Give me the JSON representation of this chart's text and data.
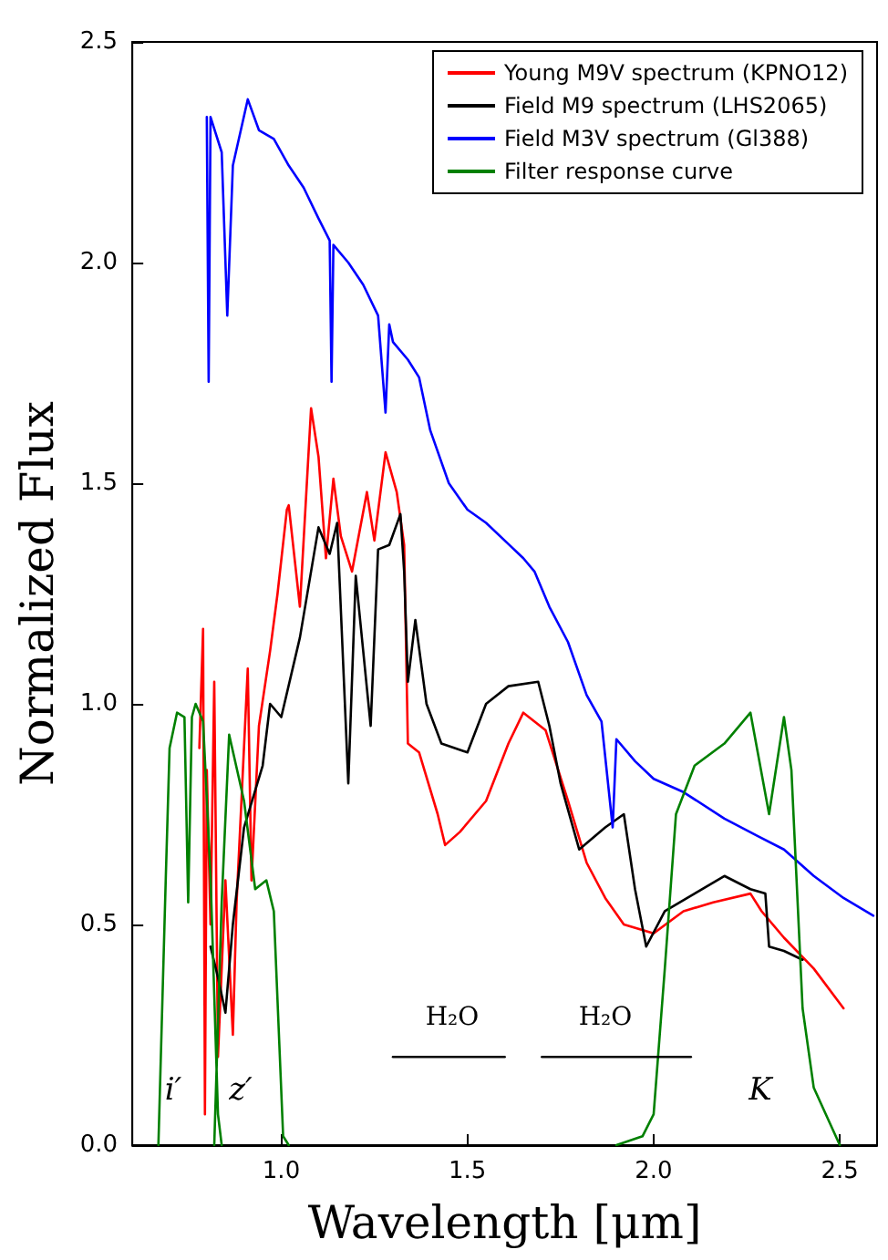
{
  "chart_data": {
    "type": "line",
    "xlabel": "Wavelength [μm]",
    "ylabel": "Normalized Flux",
    "xlim": [
      0.6,
      2.6
    ],
    "ylim": [
      0,
      2.5
    ],
    "xticks": [
      {
        "value": 1,
        "label": "1.0"
      },
      {
        "value": 1.5,
        "label": "1.5"
      },
      {
        "value": 2,
        "label": "2.0"
      },
      {
        "value": 2.5,
        "label": "2.5"
      }
    ],
    "yticks": [
      {
        "value": 0,
        "label": "0.0"
      },
      {
        "value": 0.5,
        "label": "0.5"
      },
      {
        "value": 1,
        "label": "1.0"
      },
      {
        "value": 1.5,
        "label": "1.5"
      },
      {
        "value": 2,
        "label": "2.0"
      },
      {
        "value": 2.5,
        "label": "2.5"
      }
    ],
    "grid": false,
    "legend": "top right",
    "marker": "none",
    "line_style": "solid",
    "series": [
      {
        "name": "Young M9V spectrum (KPNO12)",
        "color": "#ff0000",
        "x": [
          0.78,
          0.79,
          0.795,
          0.8,
          0.81,
          0.82,
          0.83,
          0.85,
          0.87,
          0.88,
          0.91,
          0.92,
          0.94,
          0.97,
          0.99,
          1.015,
          1.02,
          1.05,
          1.08,
          1.1,
          1.12,
          1.14,
          1.16,
          1.19,
          1.23,
          1.25,
          1.28,
          1.31,
          1.33,
          1.34,
          1.37,
          1.42,
          1.44,
          1.48,
          1.55,
          1.61,
          1.65,
          1.71,
          1.77,
          1.82,
          1.87,
          1.92,
          2.0,
          2.08,
          2.16,
          2.26,
          2.29,
          2.35,
          2.43,
          2.51
        ],
        "values": [
          0.9,
          1.17,
          0.07,
          0.85,
          0.5,
          1.05,
          0.2,
          0.6,
          0.25,
          0.55,
          1.08,
          0.6,
          0.95,
          1.12,
          1.25,
          1.44,
          1.45,
          1.22,
          1.67,
          1.56,
          1.33,
          1.51,
          1.38,
          1.3,
          1.48,
          1.37,
          1.57,
          1.48,
          1.36,
          0.91,
          0.89,
          0.75,
          0.68,
          0.71,
          0.78,
          0.91,
          0.98,
          0.94,
          0.78,
          0.64,
          0.56,
          0.5,
          0.48,
          0.53,
          0.55,
          0.57,
          0.53,
          0.47,
          0.4,
          0.31
        ]
      },
      {
        "name": "Field M9 spectrum (LHS2065)",
        "color": "#000000",
        "x": [
          0.81,
          0.83,
          0.85,
          0.87,
          0.9,
          0.95,
          0.97,
          1.0,
          1.05,
          1.1,
          1.13,
          1.15,
          1.18,
          1.2,
          1.24,
          1.26,
          1.29,
          1.32,
          1.33,
          1.34,
          1.36,
          1.39,
          1.43,
          1.5,
          1.55,
          1.61,
          1.69,
          1.72,
          1.75,
          1.8,
          1.87,
          1.92,
          1.95,
          1.98,
          2.03,
          2.11,
          2.19,
          2.26,
          2.3,
          2.31,
          2.35,
          2.4
        ],
        "values": [
          0.45,
          0.38,
          0.3,
          0.5,
          0.72,
          0.86,
          1.0,
          0.97,
          1.15,
          1.4,
          1.34,
          1.41,
          0.82,
          1.29,
          0.95,
          1.35,
          1.36,
          1.43,
          1.3,
          1.05,
          1.19,
          1.0,
          0.91,
          0.89,
          1.0,
          1.04,
          1.05,
          0.95,
          0.82,
          0.67,
          0.72,
          0.75,
          0.58,
          0.45,
          0.53,
          0.57,
          0.61,
          0.58,
          0.57,
          0.45,
          0.44,
          0.42
        ]
      },
      {
        "name": "Field M3V spectrum (Gl388)",
        "color": "#0000ff",
        "x": [
          0.8,
          0.805,
          0.81,
          0.84,
          0.855,
          0.87,
          0.91,
          0.94,
          0.98,
          1.02,
          1.06,
          1.1,
          1.13,
          1.135,
          1.14,
          1.18,
          1.22,
          1.26,
          1.28,
          1.29,
          1.3,
          1.34,
          1.37,
          1.4,
          1.45,
          1.5,
          1.55,
          1.6,
          1.65,
          1.68,
          1.72,
          1.77,
          1.82,
          1.86,
          1.89,
          1.9,
          1.95,
          2.0,
          2.08,
          2.19,
          2.28,
          2.35,
          2.43,
          2.51,
          2.59
        ],
        "values": [
          2.33,
          1.73,
          2.33,
          2.25,
          1.88,
          2.22,
          2.37,
          2.3,
          2.28,
          2.22,
          2.17,
          2.1,
          2.05,
          1.73,
          2.04,
          2.0,
          1.95,
          1.88,
          1.66,
          1.86,
          1.82,
          1.78,
          1.74,
          1.62,
          1.5,
          1.44,
          1.41,
          1.37,
          1.33,
          1.3,
          1.22,
          1.14,
          1.02,
          0.96,
          0.72,
          0.92,
          0.87,
          0.83,
          0.8,
          0.74,
          0.7,
          0.67,
          0.61,
          0.56,
          0.52
        ]
      },
      {
        "name": "Filter response curve",
        "color": "#008000",
        "x": [
          0.67,
          0.69,
          0.7,
          0.72,
          0.74,
          0.75,
          0.76,
          0.77,
          0.79,
          0.81,
          0.83,
          0.84,
          null,
          0.82,
          0.84,
          0.86,
          0.9,
          0.93,
          0.96,
          0.98,
          1.005,
          1.02,
          null,
          1.9,
          1.97,
          2.0,
          2.03,
          2.06,
          2.11,
          2.19,
          2.26,
          2.31,
          2.35,
          2.37,
          2.4,
          2.43,
          2.5
        ],
        "values": [
          0,
          0.61,
          0.9,
          0.98,
          0.97,
          0.55,
          0.97,
          1.0,
          0.96,
          0.61,
          0.07,
          0,
          null,
          0,
          0.55,
          0.93,
          0.78,
          0.58,
          0.6,
          0.53,
          0.02,
          0,
          null,
          0,
          0.02,
          0.07,
          0.4,
          0.75,
          0.86,
          0.91,
          0.98,
          0.75,
          0.97,
          0.85,
          0.31,
          0.13,
          0
        ]
      },
      {
        "color": "#000000",
        "x": [
          1.3,
          1.6
        ],
        "values": [
          0.2,
          0.2
        ]
      },
      {
        "color": "#000000",
        "x": [
          1.7,
          2.1
        ],
        "values": [
          0.2,
          0.2
        ]
      }
    ],
    "annotations": [
      "H₂O",
      "H₂O",
      "i′",
      "z′",
      "K"
    ]
  }
}
